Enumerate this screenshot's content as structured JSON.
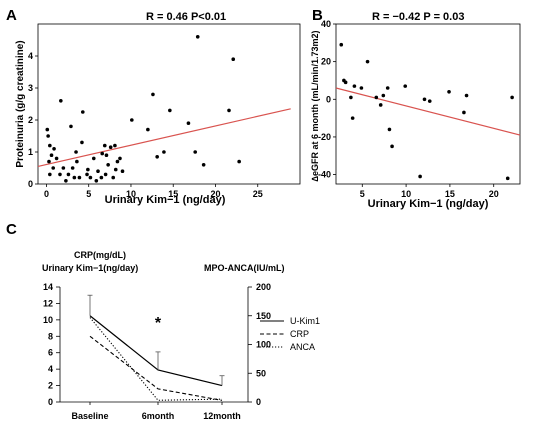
{
  "chart_data": [
    {
      "panel": "A",
      "type": "scatter",
      "title": "R = 0.46  P<0.01",
      "xlabel": "Urinary Kim−1  (ng/day)",
      "ylabel": "Proteinuria (g/g creatinine)",
      "xlim": [
        -1,
        30
      ],
      "ylim": [
        0,
        5
      ],
      "xticks": [
        0,
        5,
        10,
        15,
        20,
        25
      ],
      "yticks": [
        0,
        1,
        2,
        3,
        4
      ],
      "points": [
        [
          0.1,
          1.7
        ],
        [
          0.2,
          1.5
        ],
        [
          0.3,
          0.7
        ],
        [
          0.4,
          0.3
        ],
        [
          0.4,
          1.2
        ],
        [
          0.6,
          0.9
        ],
        [
          0.9,
          1.1
        ],
        [
          0.8,
          0.5
        ],
        [
          1.2,
          0.8
        ],
        [
          1.7,
          2.6
        ],
        [
          1.6,
          0.3
        ],
        [
          2.0,
          0.5
        ],
        [
          2.3,
          0.1
        ],
        [
          2.6,
          0.3
        ],
        [
          2.9,
          1.8
        ],
        [
          3.1,
          0.5
        ],
        [
          3.3,
          0.2
        ],
        [
          3.6,
          0.7
        ],
        [
          3.9,
          0.2
        ],
        [
          3.5,
          1.0
        ],
        [
          4.3,
          2.25
        ],
        [
          4.2,
          1.3
        ],
        [
          4.8,
          0.3
        ],
        [
          4.9,
          0.45
        ],
        [
          5.2,
          0.2
        ],
        [
          5.6,
          0.8
        ],
        [
          5.9,
          0.1
        ],
        [
          6.1,
          0.4
        ],
        [
          6.6,
          0.95
        ],
        [
          6.9,
          1.2
        ],
        [
          6.5,
          0.2
        ],
        [
          7.0,
          0.3
        ],
        [
          7.3,
          0.6
        ],
        [
          7.1,
          0.9
        ],
        [
          7.6,
          1.15
        ],
        [
          7.9,
          0.2
        ],
        [
          8.2,
          0.45
        ],
        [
          8.4,
          0.7
        ],
        [
          8.1,
          1.2
        ],
        [
          8.7,
          0.8
        ],
        [
          9.0,
          0.4
        ],
        [
          10.1,
          2.0
        ],
        [
          12.0,
          1.7
        ],
        [
          12.6,
          2.8
        ],
        [
          13.1,
          0.85
        ],
        [
          13.9,
          1.0
        ],
        [
          14.6,
          2.3
        ],
        [
          16.8,
          1.9
        ],
        [
          17.6,
          1.0
        ],
        [
          17.9,
          4.6
        ],
        [
          18.6,
          0.6
        ],
        [
          21.6,
          2.3
        ],
        [
          22.1,
          3.9
        ],
        [
          22.8,
          0.7
        ]
      ],
      "regression": [
        [
          -1,
          0.55
        ],
        [
          28.9,
          2.35
        ]
      ]
    },
    {
      "panel": "B",
      "type": "scatter",
      "title": "R = −0.42  P = 0.03",
      "xlabel": "Urinary Kim−1  (ng/day)",
      "ylabel": "∆eGFR at 6 month (mL/min/1.73m2)",
      "xlim": [
        2,
        23
      ],
      "ylim": [
        -45,
        40
      ],
      "xticks": [
        5,
        10,
        15,
        20
      ],
      "yticks": [
        -40,
        -20,
        0,
        20,
        40
      ],
      "points": [
        [
          2.6,
          29
        ],
        [
          2.9,
          10
        ],
        [
          3.1,
          9
        ],
        [
          3.7,
          1
        ],
        [
          3.9,
          -10
        ],
        [
          4.1,
          7
        ],
        [
          4.9,
          6
        ],
        [
          5.6,
          20
        ],
        [
          6.6,
          1
        ],
        [
          7.1,
          -3
        ],
        [
          7.4,
          2
        ],
        [
          7.9,
          6
        ],
        [
          8.1,
          -16
        ],
        [
          8.4,
          -25
        ],
        [
          9.9,
          7
        ],
        [
          11.6,
          -41
        ],
        [
          12.1,
          0
        ],
        [
          12.7,
          -1
        ],
        [
          14.9,
          4
        ],
        [
          16.6,
          -7
        ],
        [
          16.9,
          2
        ],
        [
          21.6,
          -42
        ],
        [
          22.1,
          1
        ]
      ],
      "regression": [
        [
          2,
          6
        ],
        [
          23,
          -19
        ]
      ]
    },
    {
      "panel": "C",
      "type": "line",
      "categories": [
        "Baseline",
        "6month",
        "12month"
      ],
      "left_axis_labels": [
        "CRP(mg/dL)",
        "Urinary Kim−1(ng/day)"
      ],
      "right_axis_label": "MPO-ANCA(IU/mL)",
      "left_ylim": [
        0,
        14
      ],
      "right_ylim": [
        0,
        200
      ],
      "left_yticks": [
        0,
        2,
        4,
        6,
        8,
        10,
        12,
        14
      ],
      "right_yticks": [
        0,
        50,
        100,
        150,
        200
      ],
      "series": [
        {
          "name": "U-Kim1",
          "axis": "left",
          "style": "solid",
          "values": [
            10.5,
            3.9,
            2.0
          ],
          "error_upper": [
            13.0,
            6.1,
            3.2
          ]
        },
        {
          "name": "CRP",
          "axis": "left",
          "style": "dashed",
          "values": [
            8.0,
            1.6,
            0.2
          ]
        },
        {
          "name": "ANCA",
          "axis": "right",
          "style": "dotted",
          "values": [
            147,
            3,
            5
          ]
        }
      ],
      "annotation": "*"
    }
  ],
  "panel_labels": [
    "A",
    "B",
    "C"
  ]
}
